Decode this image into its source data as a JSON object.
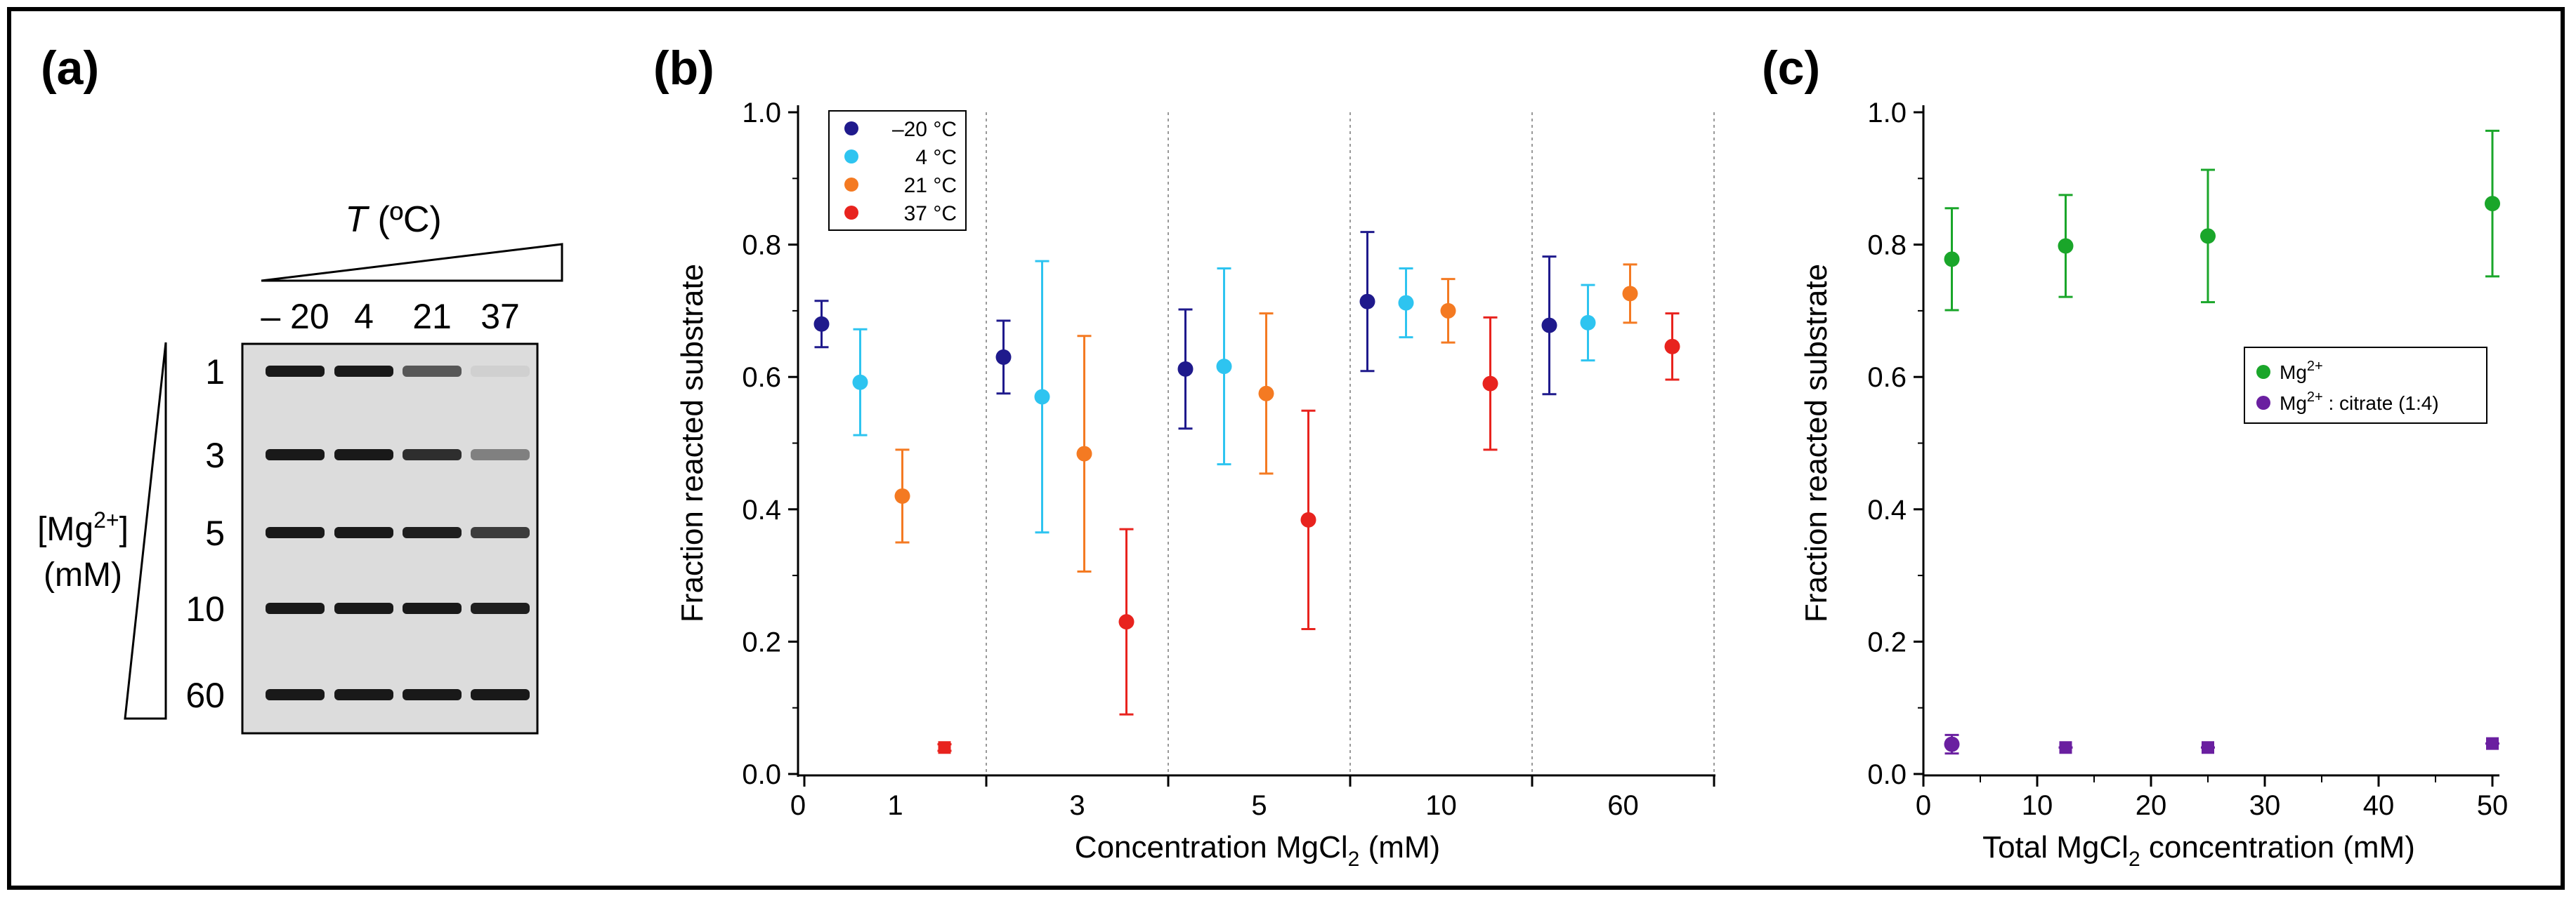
{
  "panels": {
    "a": {
      "label": "(a)",
      "temp_label_italic": "T",
      "temp_label_unit": " (ºC)",
      "temperatures": [
        "– 20",
        "4",
        "21",
        "37"
      ],
      "mg_label_base": "[Mg",
      "mg_label_sup": "2+",
      "mg_label_close": "]",
      "mg_unit": "(mM)",
      "mg_concentrations": [
        "1",
        "3",
        "5",
        "10",
        "60"
      ],
      "band_intensities": [
        [
          0.95,
          0.95,
          0.65,
          0.06
        ],
        [
          0.95,
          0.95,
          0.85,
          0.45
        ],
        [
          0.95,
          0.95,
          0.92,
          0.78
        ],
        [
          0.95,
          0.95,
          0.95,
          0.92
        ],
        [
          0.95,
          0.95,
          0.95,
          0.95
        ]
      ]
    },
    "b": {
      "label": "(b)"
    },
    "c": {
      "label": "(c)"
    }
  },
  "chart_data": [
    {
      "id": "b",
      "type": "scatter",
      "xlabel_base": "Concentration MgCl",
      "xlabel_sub": "2",
      "xlabel_unit": " (mM)",
      "ylabel": "Fraction reacted substrate",
      "ylim": [
        0,
        1
      ],
      "yticks": [
        "0.0",
        "0.2",
        "0.4",
        "0.6",
        "0.8",
        "1.0"
      ],
      "x_zero_tick": "0",
      "categories": [
        "1",
        "3",
        "5",
        "10",
        "60"
      ],
      "legend_position": "top-left",
      "series": [
        {
          "name": "–20 °C",
          "color": "#1f1a8c",
          "values": [
            0.68,
            0.63,
            0.612,
            0.714,
            0.678
          ],
          "errors": [
            0.035,
            0.055,
            0.09,
            0.105,
            0.104
          ]
        },
        {
          "name": "4 °C",
          "color": "#2ec4f0",
          "values": [
            0.592,
            0.57,
            0.616,
            0.712,
            0.682
          ],
          "errors": [
            0.08,
            0.205,
            0.148,
            0.052,
            0.057
          ]
        },
        {
          "name": "21 °C",
          "color": "#f47a22",
          "values": [
            0.42,
            0.484,
            0.575,
            0.7,
            0.726
          ],
          "errors": [
            0.07,
            0.178,
            0.121,
            0.048,
            0.044
          ]
        },
        {
          "name": "37 °C",
          "color": "#e8231e",
          "values": [
            0.04,
            0.23,
            0.384,
            0.59,
            0.646
          ],
          "errors": [
            0.005,
            0.14,
            0.165,
            0.1,
            0.05
          ]
        }
      ]
    },
    {
      "id": "c",
      "type": "scatter",
      "xlabel_base": "Total MgCl",
      "xlabel_sub": "2",
      "xlabel_unit": " concentration (mM)",
      "ylabel": "Fraction reacted substrate",
      "xlim": [
        0,
        50
      ],
      "ylim": [
        0,
        1
      ],
      "xticks": [
        "0",
        "10",
        "20",
        "30",
        "40",
        "50"
      ],
      "yticks": [
        "0.0",
        "0.2",
        "0.4",
        "0.6",
        "0.8",
        "1.0"
      ],
      "legend_position": "right",
      "x": [
        2.5,
        12.5,
        25,
        50
      ],
      "series": [
        {
          "name_base": "Mg",
          "name_sup": "2+",
          "name_tail": "",
          "color": "#1aa62a",
          "values": [
            0.778,
            0.798,
            0.813,
            0.862
          ],
          "errors": [
            0.077,
            0.077,
            0.1,
            0.11
          ]
        },
        {
          "name_base": "Mg",
          "name_sup": "2+",
          "name_tail": " : citrate (1:4)",
          "color": "#6a1fa0",
          "values": [
            0.045,
            0.04,
            0.04,
            0.046
          ],
          "errors": [
            0.014,
            0.0,
            0.0,
            0.0
          ]
        }
      ]
    }
  ]
}
